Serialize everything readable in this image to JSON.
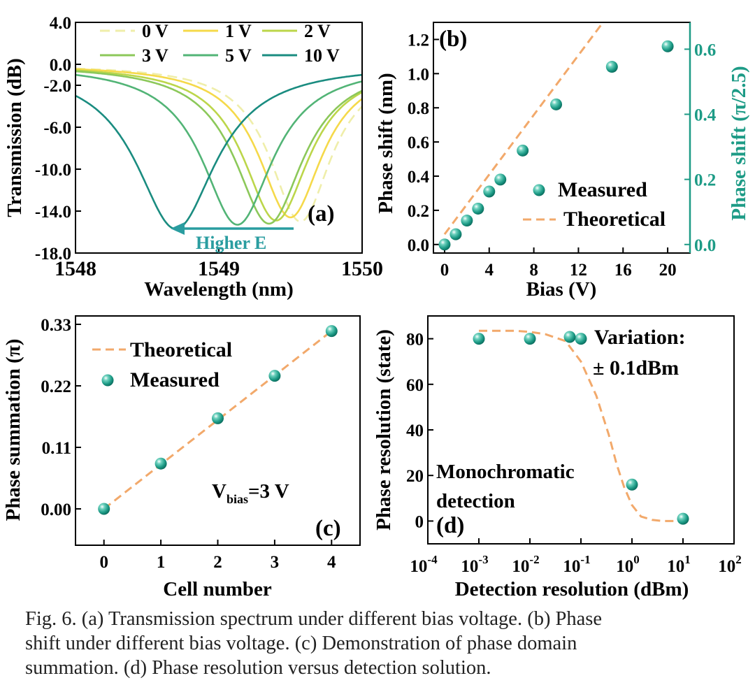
{
  "colors": {
    "marker": "#1d9b86",
    "marker_dark": "#0b6e5f",
    "dashed": "#f2a96b",
    "teal_axis": "#1d9b86",
    "arrow": "#2a9da0"
  },
  "chart_data": [
    {
      "panel": "(a)",
      "type": "line",
      "title": "",
      "xlabel": "Wavelength (nm)",
      "ylabel": "Transmission (dB)",
      "xlim": [
        1548,
        1550
      ],
      "ylim": [
        -18,
        4
      ],
      "x_ticks": [
        "1548",
        "1549",
        "1550"
      ],
      "y_ticks": [
        "4.0",
        "0.0",
        "-2.0",
        "-6.0",
        "-10.0",
        "-14.0",
        "-18.0"
      ],
      "annotation": "Higher E",
      "series": [
        {
          "name": "0 V",
          "color": "#efeeaa",
          "dash": true,
          "center": 1549.57,
          "depth": -15.0,
          "width": 0.26
        },
        {
          "name": "1 V",
          "color": "#f5d94a",
          "center": 1549.5,
          "depth": -14.6,
          "width": 0.27
        },
        {
          "name": "2 V",
          "color": "#bcd64a",
          "center": 1549.4,
          "depth": -14.9,
          "width": 0.28
        },
        {
          "name": "3 V",
          "color": "#8cc85a",
          "center": 1549.35,
          "depth": -15.2,
          "width": 0.29
        },
        {
          "name": "5 V",
          "color": "#52b476",
          "center": 1549.13,
          "depth": -15.3,
          "width": 0.3
        },
        {
          "name": "10 V",
          "color": "#1a8c80",
          "center": 1548.7,
          "depth": -15.7,
          "width": 0.34
        }
      ]
    },
    {
      "panel": "(b)",
      "type": "scatter",
      "xlabel": "Bias (V)",
      "ylabel": "Phase shift (nm)",
      "y2label": "Phase shift (π/2.5)",
      "xlim": [
        -1,
        22
      ],
      "ylim": [
        -0.05,
        1.3
      ],
      "x_ticks": [
        "0",
        "4",
        "8",
        "12",
        "16",
        "20"
      ],
      "y_ticks": [
        "0.0",
        "0.2",
        "0.4",
        "0.6",
        "0.8",
        "1.0",
        "1.2"
      ],
      "y2_ticks": [
        "0.0",
        "0.2",
        "0.4",
        "0.6"
      ],
      "legend": [
        "Measured",
        "Theoretical"
      ],
      "measured": {
        "x": [
          0,
          1,
          2,
          3,
          4,
          5,
          7,
          10,
          15,
          20
        ],
        "y": [
          0.0,
          0.06,
          0.14,
          0.21,
          0.31,
          0.38,
          0.55,
          0.82,
          1.04,
          1.16
        ]
      },
      "theoretical": {
        "x": [
          0,
          14.2
        ],
        "y": [
          0.06,
          1.3
        ]
      }
    },
    {
      "panel": "(c)",
      "type": "scatter",
      "xlabel": "Cell number",
      "ylabel": "Phase summation (π)",
      "xlim": [
        -0.5,
        4.5
      ],
      "ylim": [
        -0.065,
        0.345
      ],
      "x_ticks": [
        "0",
        "1",
        "2",
        "3",
        "4"
      ],
      "y_ticks": [
        "0.00",
        "0.11",
        "0.22",
        "0.33"
      ],
      "legend": [
        "Theoretical",
        "Measured"
      ],
      "annotation": {
        "main": "V",
        "sub": "bias",
        "rest": "=3 V"
      },
      "measured": {
        "x": [
          0,
          1,
          2,
          3,
          4
        ],
        "y": [
          0.0,
          0.081,
          0.162,
          0.238,
          0.318
        ]
      },
      "theoretical": {
        "x": [
          0,
          4
        ],
        "y": [
          0.0,
          0.318
        ]
      }
    },
    {
      "panel": "(d)",
      "type": "scatter",
      "xscale": "log",
      "xlabel": "Detection resolution (dBm)",
      "ylabel": "Phase resolution (state)",
      "xlim_exp": [
        -4,
        2
      ],
      "ylim": [
        -10,
        90
      ],
      "x_ticks": [
        "10^-4",
        "10^-3",
        "10^-2",
        "10^-1",
        "10^0",
        "10^1",
        "10^2"
      ],
      "y_ticks": [
        "0",
        "20",
        "40",
        "60",
        "80"
      ],
      "legend": [
        "Variation:",
        "± 0.1dBm"
      ],
      "annotation": [
        "Monochromatic",
        "detection"
      ],
      "measured": {
        "x": [
          0.001,
          0.01,
          0.1,
          1,
          10
        ],
        "y": [
          80,
          80,
          80,
          16,
          1
        ]
      },
      "theoretical": {
        "x": [
          0.001,
          0.005,
          0.01,
          0.02,
          0.05,
          0.1,
          0.2,
          0.35,
          0.5,
          0.7,
          1,
          1.5,
          2.5,
          4,
          10
        ],
        "y": [
          83.5,
          83.5,
          83,
          82,
          79,
          70,
          55,
          38,
          25,
          15,
          7,
          2,
          0.5,
          0,
          0
        ]
      }
    }
  ],
  "caption": {
    "lines": [
      "Fig. 6. (a) Transmission spectrum under different bias voltage.  (b) Phase",
      "shift  under different bias voltage. (c) Demonstration of phase domain",
      "summation. (d) Phase resolution versus detection solution."
    ]
  }
}
